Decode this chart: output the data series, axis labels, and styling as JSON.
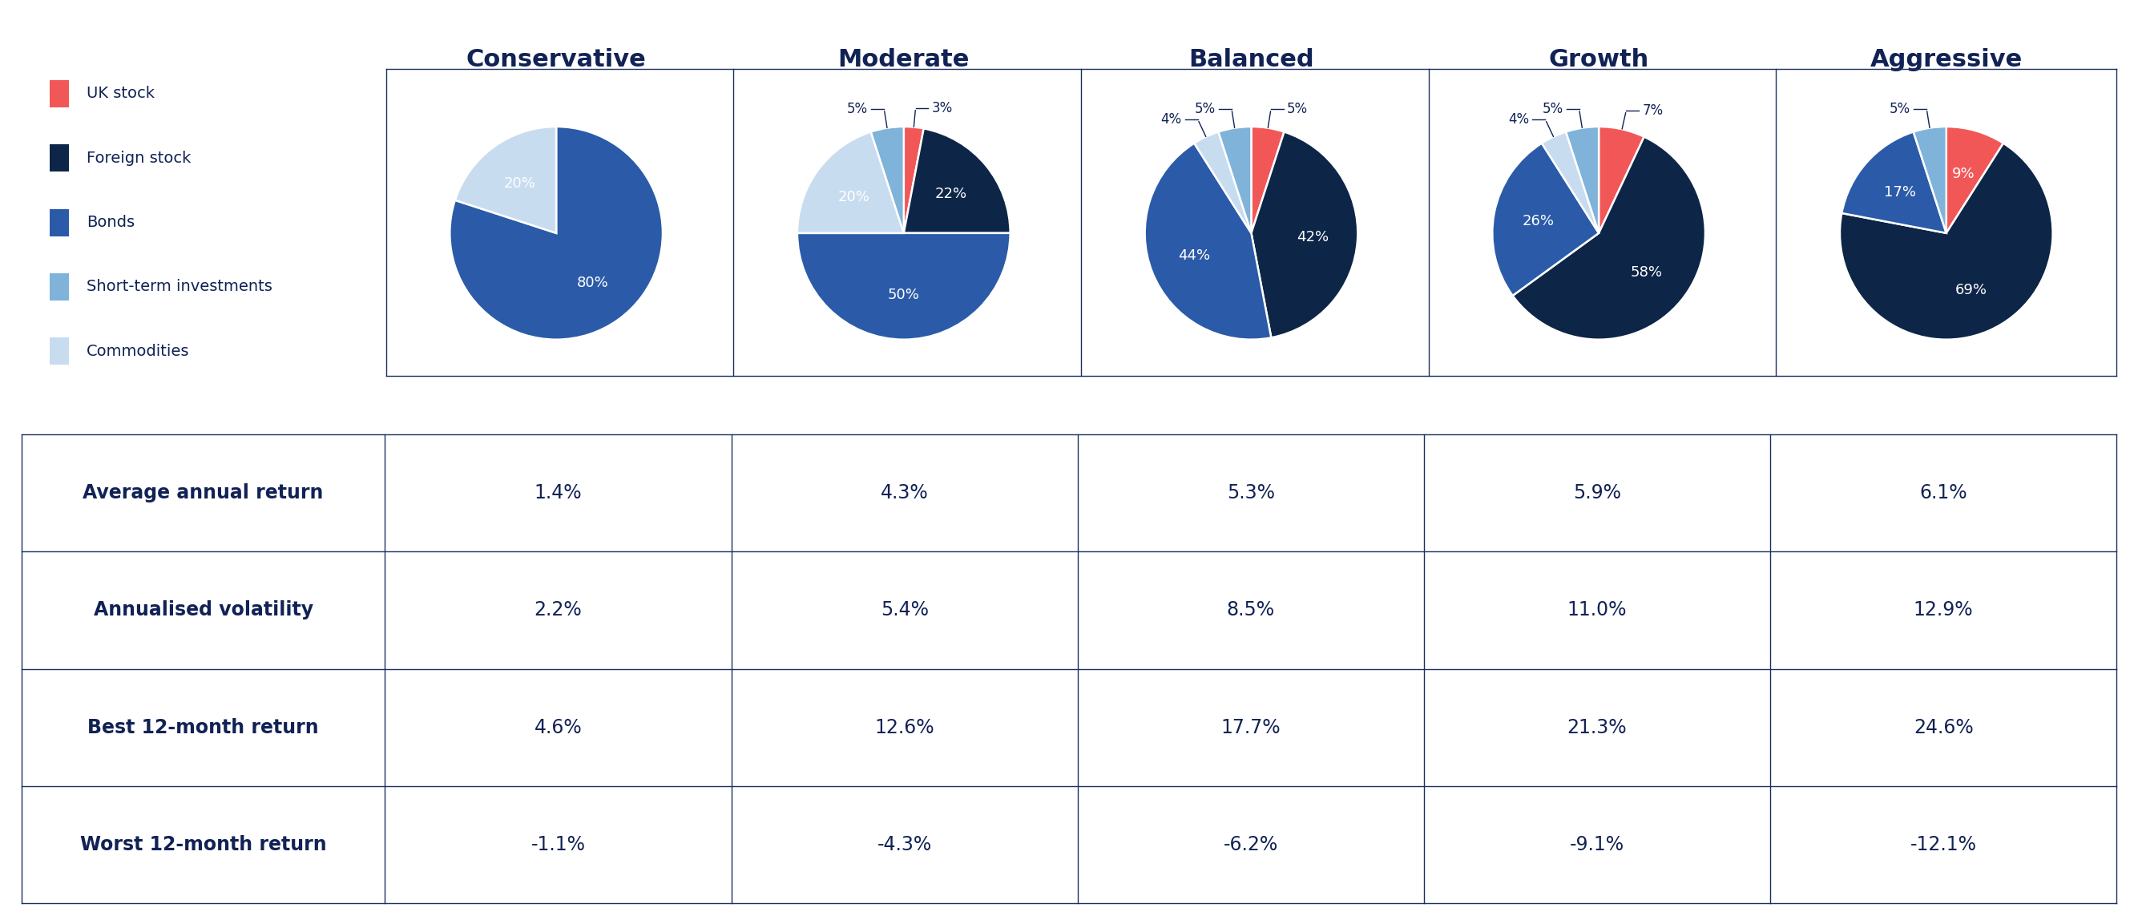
{
  "columns": [
    "Conservative",
    "Moderate",
    "Balanced",
    "Growth",
    "Aggressive"
  ],
  "pie_data": [
    [
      0,
      0,
      80,
      20,
      0
    ],
    [
      3,
      22,
      50,
      20,
      5
    ],
    [
      5,
      42,
      44,
      4,
      5
    ],
    [
      7,
      58,
      26,
      4,
      5
    ],
    [
      9,
      69,
      17,
      0,
      5
    ]
  ],
  "slice_order": [
    "UK stock",
    "Foreign stock",
    "Bonds",
    "Commodities",
    "Short-term investments"
  ],
  "colors": {
    "UK stock": "#F25757",
    "Foreign stock": "#0D2547",
    "Bonds": "#2B5BA8",
    "Short-term investments": "#7FB3D9",
    "Commodities": "#C8DCF0"
  },
  "table_rows": [
    {
      "label": "Average annual return",
      "values": [
        "1.4%",
        "4.3%",
        "5.3%",
        "5.9%",
        "6.1%"
      ]
    },
    {
      "label": "Annualised volatility",
      "values": [
        "2.2%",
        "5.4%",
        "8.5%",
        "11.0%",
        "12.9%"
      ]
    },
    {
      "label": "Best 12-month return",
      "values": [
        "4.6%",
        "12.6%",
        "17.7%",
        "21.3%",
        "24.6%"
      ]
    },
    {
      "label": "Worst 12-month return",
      "values": [
        "-1.1%",
        "-4.3%",
        "-6.2%",
        "-9.1%",
        "-12.1%"
      ]
    }
  ],
  "background_color": "#FFFFFF",
  "table_row_bg": [
    "#EBF0F8",
    "#FFFFFF",
    "#EBF0F8",
    "#FFFFFF"
  ],
  "header_color": "#112255",
  "grid_line_color": "#1A2F5E",
  "legend_items": [
    "UK stock",
    "Foreign stock",
    "Bonds",
    "Short-term investments",
    "Commodities"
  ],
  "title_fontsize": 22,
  "label_fontsize": 14,
  "table_label_fontsize": 17,
  "table_val_fontsize": 17,
  "pie_inside_fontsize": 13,
  "pie_outside_fontsize": 12
}
